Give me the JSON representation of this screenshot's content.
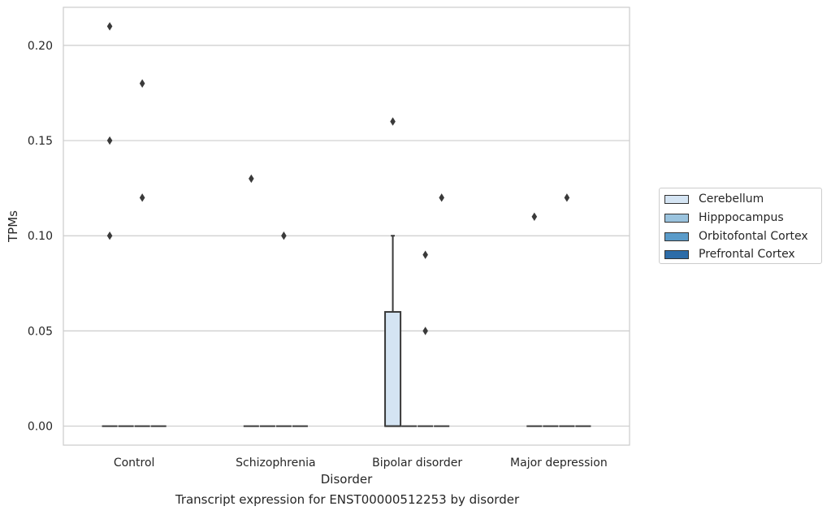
{
  "chart_data": {
    "type": "box",
    "title": "",
    "xlabel": "Disorder",
    "ylabel": "TPMs",
    "caption": "Transcript expression for ENST00000512253 by disorder",
    "categories": [
      "Control",
      "Schizophrenia",
      "Bipolar disorder",
      "Major depression"
    ],
    "ylim": [
      -0.01,
      0.22
    ],
    "yticks": [
      0.0,
      0.05,
      0.1,
      0.15,
      0.2
    ],
    "ytick_labels": [
      "0.00",
      "0.05",
      "0.10",
      "0.15",
      "0.20"
    ],
    "grid": "horizontal",
    "legend_position": "right",
    "series": [
      {
        "name": "Cerebellum",
        "color": "#d4e4f3",
        "boxes": [
          {
            "category": "Control",
            "q1": 0,
            "median": 0,
            "q3": 0,
            "whisker_low": 0,
            "whisker_high": 0,
            "outliers": [
              0.21,
              0.15,
              0.1
            ]
          },
          {
            "category": "Schizophrenia",
            "q1": 0,
            "median": 0,
            "q3": 0,
            "whisker_low": 0,
            "whisker_high": 0,
            "outliers": [
              0.13
            ]
          },
          {
            "category": "Bipolar disorder",
            "q1": 0,
            "median": 0,
            "q3": 0.06,
            "whisker_low": 0,
            "whisker_high": 0.1,
            "outliers": [
              0.16
            ]
          },
          {
            "category": "Major depression",
            "q1": 0,
            "median": 0,
            "q3": 0,
            "whisker_low": 0,
            "whisker_high": 0,
            "outliers": [
              0.11
            ]
          }
        ]
      },
      {
        "name": "Hipppocampus",
        "color": "#9ac3de",
        "boxes": [
          {
            "category": "Control",
            "q1": 0,
            "median": 0,
            "q3": 0,
            "whisker_low": 0,
            "whisker_high": 0,
            "outliers": []
          },
          {
            "category": "Schizophrenia",
            "q1": 0,
            "median": 0,
            "q3": 0,
            "whisker_low": 0,
            "whisker_high": 0,
            "outliers": []
          },
          {
            "category": "Bipolar disorder",
            "q1": 0,
            "median": 0,
            "q3": 0,
            "whisker_low": 0,
            "whisker_high": 0,
            "outliers": []
          },
          {
            "category": "Major depression",
            "q1": 0,
            "median": 0,
            "q3": 0,
            "whisker_low": 0,
            "whisker_high": 0,
            "outliers": []
          }
        ]
      },
      {
        "name": "Orbitofontal Cortex",
        "color": "#5a9bc9",
        "boxes": [
          {
            "category": "Control",
            "q1": 0,
            "median": 0,
            "q3": 0,
            "whisker_low": 0,
            "whisker_high": 0,
            "outliers": [
              0.18,
              0.12
            ]
          },
          {
            "category": "Schizophrenia",
            "q1": 0,
            "median": 0,
            "q3": 0,
            "whisker_low": 0,
            "whisker_high": 0,
            "outliers": [
              0.1
            ]
          },
          {
            "category": "Bipolar disorder",
            "q1": 0,
            "median": 0,
            "q3": 0,
            "whisker_low": 0,
            "whisker_high": 0,
            "outliers": [
              0.09,
              0.05
            ]
          },
          {
            "category": "Major depression",
            "q1": 0,
            "median": 0,
            "q3": 0,
            "whisker_low": 0,
            "whisker_high": 0,
            "outliers": [
              0.12
            ]
          }
        ]
      },
      {
        "name": "Prefrontal Cortex",
        "color": "#2d6ca8",
        "boxes": [
          {
            "category": "Control",
            "q1": 0,
            "median": 0,
            "q3": 0,
            "whisker_low": 0,
            "whisker_high": 0,
            "outliers": []
          },
          {
            "category": "Schizophrenia",
            "q1": 0,
            "median": 0,
            "q3": 0,
            "whisker_low": 0,
            "whisker_high": 0,
            "outliers": []
          },
          {
            "category": "Bipolar disorder",
            "q1": 0,
            "median": 0,
            "q3": 0,
            "whisker_low": 0,
            "whisker_high": 0,
            "outliers": [
              0.12
            ]
          },
          {
            "category": "Major depression",
            "q1": 0,
            "median": 0,
            "q3": 0,
            "whisker_low": 0,
            "whisker_high": 0,
            "outliers": []
          }
        ]
      }
    ]
  }
}
